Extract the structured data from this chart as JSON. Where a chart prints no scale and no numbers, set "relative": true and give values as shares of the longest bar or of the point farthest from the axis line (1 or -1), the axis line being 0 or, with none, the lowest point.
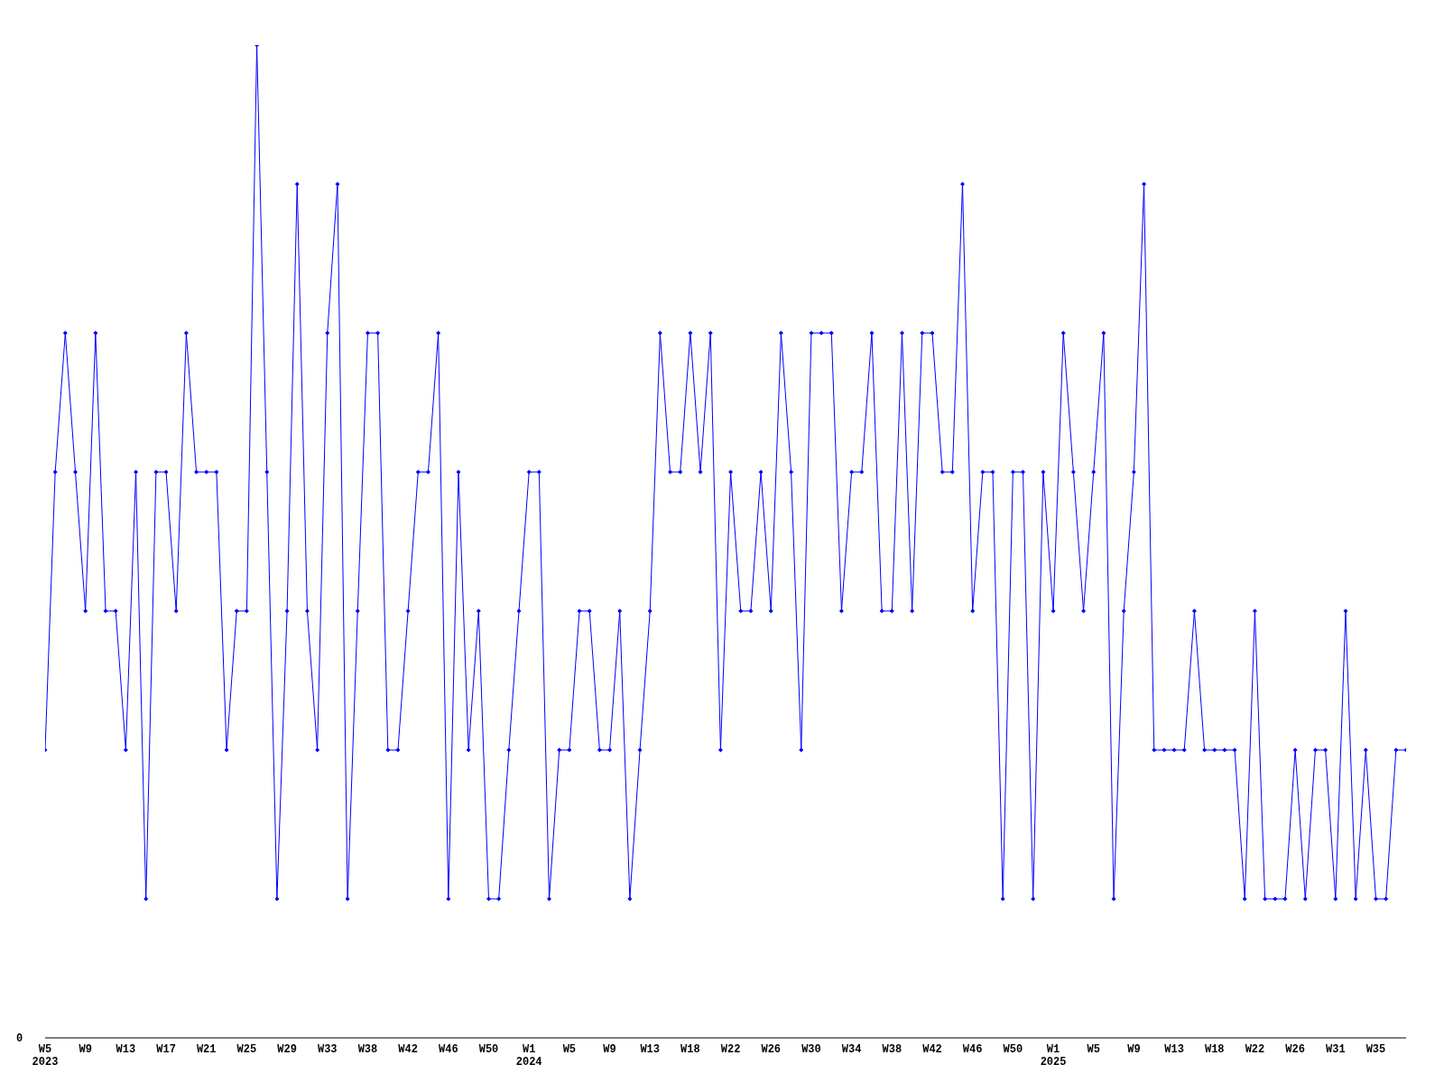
{
  "chart_data": {
    "type": "line",
    "relative": true,
    "annotations": [
      "0"
    ],
    "categories": [
      "W5\n2023",
      null,
      null,
      null,
      "W9",
      null,
      null,
      null,
      "W13",
      null,
      null,
      null,
      "W17",
      null,
      null,
      null,
      "W21",
      null,
      null,
      null,
      "W25",
      null,
      null,
      null,
      "W29",
      null,
      null,
      null,
      "W33",
      null,
      null,
      null,
      "W38",
      null,
      null,
      null,
      "W42",
      null,
      null,
      null,
      "W46",
      null,
      null,
      null,
      "W50",
      null,
      null,
      null,
      "W1\n2024",
      null,
      null,
      null,
      "W5",
      null,
      null,
      null,
      "W9",
      null,
      null,
      null,
      "W13",
      null,
      null,
      null,
      "W18",
      null,
      null,
      null,
      "W22",
      null,
      null,
      null,
      "W26",
      null,
      null,
      null,
      "W30",
      null,
      null,
      null,
      "W34",
      null,
      null,
      null,
      "W38",
      null,
      null,
      null,
      "W42",
      null,
      null,
      null,
      "W46",
      null,
      null,
      null,
      "W50",
      null,
      null,
      null,
      "W1\n2025",
      null,
      null,
      null,
      "W5",
      null,
      null,
      null,
      "W9",
      null,
      null,
      null,
      "W13",
      null,
      null,
      null,
      "W18",
      null,
      null,
      null,
      "W22",
      null,
      null,
      null,
      "W26",
      null,
      null,
      null,
      "W31",
      null,
      null,
      null,
      "W35",
      null,
      null,
      null
    ],
    "series": [
      {
        "color": "#0000ff",
        "values": [
          0.29,
          0.57,
          0.71,
          0.57,
          0.43,
          0.71,
          0.43,
          0.43,
          0.29,
          0.57,
          0.14,
          0.57,
          0.57,
          0.43,
          0.71,
          0.57,
          0.57,
          0.57,
          0.29,
          0.43,
          0.43,
          1,
          0.57,
          0.14,
          0.43,
          0.86,
          0.43,
          0.29,
          0.71,
          0.86,
          0.14,
          0.43,
          0.71,
          0.71,
          0.29,
          0.29,
          0.43,
          0.57,
          0.57,
          0.71,
          0.14,
          0.57,
          0.29,
          0.43,
          0.14,
          0.14,
          0.29,
          0.43,
          0.57,
          0.57,
          0.14,
          0.29,
          0.29,
          0.43,
          0.43,
          0.29,
          0.29,
          0.43,
          0.14,
          0.29,
          0.43,
          0.71,
          0.57,
          0.57,
          0.71,
          0.57,
          0.71,
          0.29,
          0.57,
          0.43,
          0.43,
          0.57,
          0.43,
          0.71,
          0.57,
          0.29,
          0.71,
          0.71,
          0.71,
          0.43,
          0.57,
          0.57,
          0.71,
          0.43,
          0.43,
          0.71,
          0.43,
          0.71,
          0.71,
          0.57,
          0.57,
          0.86,
          0.43,
          0.57,
          0.57,
          0.14,
          0.57,
          0.57,
          0.14,
          0.57,
          0.43,
          0.71,
          0.57,
          0.43,
          0.57,
          0.71,
          0.14,
          0.43,
          0.57,
          0.86,
          0.29,
          0.29,
          0.29,
          0.29,
          0.43,
          0.29,
          0.29,
          0.29,
          0.29,
          0.14,
          0.43,
          0.14,
          0.14,
          0.14,
          0.29,
          0.14,
          0.29,
          0.29,
          0.14,
          0.43,
          0.14,
          0.29,
          0.14,
          0.14,
          0.29,
          0.29
        ]
      }
    ],
    "marker": "diamond",
    "grid": false,
    "legend": false
  }
}
